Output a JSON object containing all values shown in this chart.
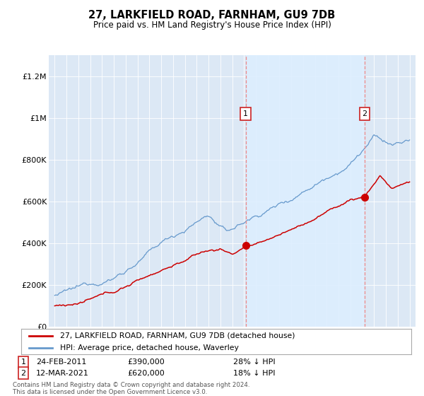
{
  "title": "27, LARKFIELD ROAD, FARNHAM, GU9 7DB",
  "subtitle": "Price paid vs. HM Land Registry's House Price Index (HPI)",
  "ylabel_ticks": [
    "£0",
    "£200K",
    "£400K",
    "£600K",
    "£800K",
    "£1M",
    "£1.2M"
  ],
  "ytick_values": [
    0,
    200000,
    400000,
    600000,
    800000,
    1000000,
    1200000
  ],
  "ylim": [
    0,
    1300000
  ],
  "xlim_start": 1994.5,
  "xlim_end": 2025.5,
  "legend_line1": "27, LARKFIELD ROAD, FARNHAM, GU9 7DB (detached house)",
  "legend_line2": "HPI: Average price, detached house, Waverley",
  "sale1_label": "1",
  "sale1_date": "24-FEB-2011",
  "sale1_price": "£390,000",
  "sale1_note": "28% ↓ HPI",
  "sale2_label": "2",
  "sale2_date": "12-MAR-2021",
  "sale2_price": "£620,000",
  "sale2_note": "18% ↓ HPI",
  "footer": "Contains HM Land Registry data © Crown copyright and database right 2024.\nThis data is licensed under the Open Government Licence v3.0.",
  "sale1_year": 2011.15,
  "sale1_value": 390000,
  "sale2_year": 2021.2,
  "sale2_value": 620000,
  "line_red_color": "#cc0000",
  "line_blue_color": "#6699cc",
  "vline_color": "#ee8888",
  "shade_color": "#ddeeff",
  "plot_bg_color": "#dce8f5",
  "grid_color": "#ffffff"
}
